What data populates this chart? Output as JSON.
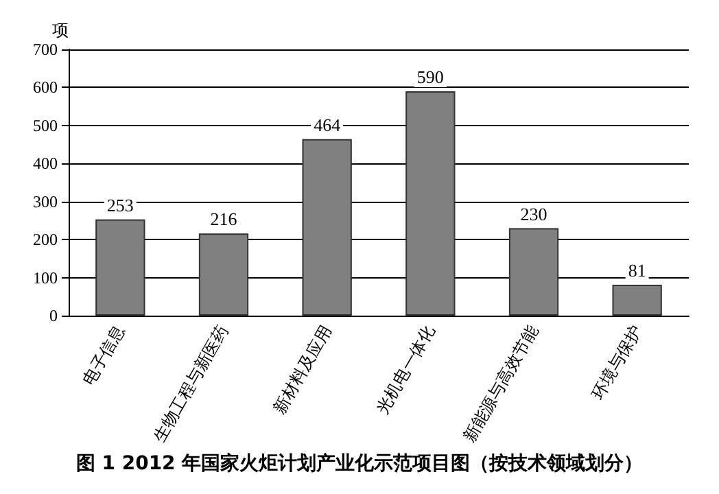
{
  "chart_data": {
    "type": "bar",
    "title": "图 1 2012 年国家火炬计划产业化示范项目图（按技术领域划分）",
    "ylabel": "项",
    "categories": [
      "电子信息",
      "生物工程与新医药",
      "新材料及应用",
      "光机电一体化",
      "新能源与高效节能",
      "环境与保护"
    ],
    "values": [
      253,
      216,
      464,
      590,
      230,
      81
    ],
    "color": "#808080",
    "ylim": [
      0,
      700
    ],
    "yticks": [
      0,
      100,
      200,
      300,
      400,
      500,
      600,
      700
    ],
    "grid": "y",
    "data_labels": true
  }
}
